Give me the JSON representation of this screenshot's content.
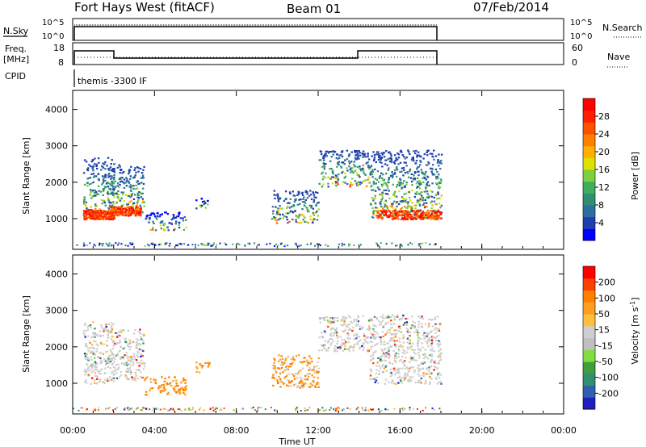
{
  "header": {
    "station": "Fort Hays West (fitACF)",
    "beam": "Beam 01",
    "date": "07/Feb/2014"
  },
  "panels": {
    "nsky": {
      "label": "N.Sky",
      "ticks": [
        "10^5",
        "10^0"
      ],
      "right_ticks": [
        "10^5",
        "10^0"
      ],
      "right_label": "N.Search"
    },
    "freq": {
      "label_line1": "Freq.",
      "label_line2": "[MHz]",
      "ticks": [
        "18",
        "8"
      ],
      "right_ticks": [
        "60",
        "0"
      ],
      "right_label": "Nave"
    },
    "cpid": {
      "label": "CPID",
      "program": "themis -3300 IF"
    }
  },
  "chart_data": [
    {
      "type": "heatmap",
      "name": "power-panel",
      "ylabel": "Slant Range [km]",
      "xlabel": "Time UT",
      "x_ticks": [
        "00:00",
        "04:00",
        "08:00",
        "12:00",
        "16:00",
        "20:00",
        "00:00"
      ],
      "y_ticks": [
        "1000",
        "2000",
        "3000",
        "4000"
      ],
      "xlim_hours": [
        0,
        24
      ],
      "ylim_km": [
        180,
        4500
      ],
      "colorbar": {
        "label": "Power [dB]",
        "tick_labels": [
          "28",
          "24",
          "20",
          "16",
          "12",
          "8",
          "4"
        ],
        "colors": [
          "#0000ff",
          "#1f3faf",
          "#2f6f9f",
          "#2f8f6f",
          "#3faf5f",
          "#7fcf3f",
          "#dfdf00",
          "#ffb000",
          "#ff8000",
          "#ff5000",
          "#ff1f00",
          "#ff0000"
        ]
      },
      "regions": [
        {
          "t0": 0.5,
          "t1": 2.0,
          "r0": 1000,
          "r1": 2700,
          "level": "mixed"
        },
        {
          "t0": 1.8,
          "t1": 3.5,
          "r0": 1100,
          "r1": 2500,
          "level": "mixed"
        },
        {
          "t0": 3.5,
          "t1": 5.5,
          "r0": 700,
          "r1": 1200,
          "level": "low"
        },
        {
          "t0": 6.0,
          "t1": 6.7,
          "r0": 1300,
          "r1": 1600,
          "level": "low"
        },
        {
          "t0": 9.7,
          "t1": 12.0,
          "r0": 900,
          "r1": 1800,
          "level": "mixed"
        },
        {
          "t0": 12.0,
          "t1": 14.5,
          "r0": 1900,
          "r1": 2900,
          "level": "mixed"
        },
        {
          "t0": 14.5,
          "t1": 18.0,
          "r0": 1000,
          "r1": 2900,
          "level": "mixed"
        }
      ]
    },
    {
      "type": "heatmap",
      "name": "velocity-panel",
      "ylabel": "Slant Range [km]",
      "xlabel": "Time UT",
      "x_ticks": [
        "00:00",
        "04:00",
        "08:00",
        "12:00",
        "16:00",
        "20:00",
        "00:00"
      ],
      "y_ticks": [
        "1000",
        "2000",
        "3000",
        "4000"
      ],
      "xlim_hours": [
        0,
        24
      ],
      "ylim_km": [
        180,
        4500
      ],
      "colorbar": {
        "label": "Velocity [m s^-1]",
        "tick_labels": [
          "200",
          "100",
          "50",
          "15",
          "-15",
          "-50",
          "-100",
          "-200"
        ],
        "colors": [
          "#1f1fbf",
          "#2f5faf",
          "#2f8f6f",
          "#3f9f3f",
          "#7fdf3f",
          "#bfbfbf",
          "#cfcfcf",
          "#ffbf3f",
          "#ff9f1f",
          "#ff7f00",
          "#ff3f00",
          "#ff0000"
        ]
      }
    }
  ]
}
